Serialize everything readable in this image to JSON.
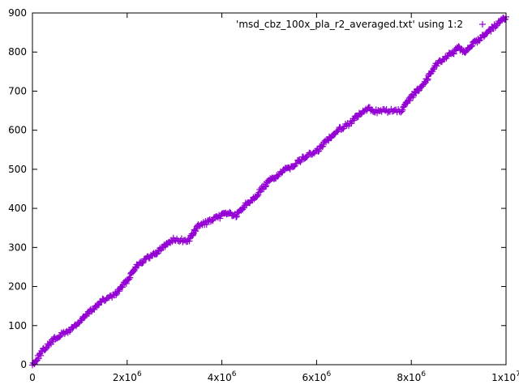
{
  "chart_data": {
    "type": "scatter",
    "title": "",
    "xlabel": "",
    "ylabel": "",
    "xlim": [
      0,
      10000000
    ],
    "ylim": [
      0,
      900
    ],
    "grid": false,
    "legend_placement": "top-right",
    "x_ticks": [
      {
        "value": 0,
        "base": "0",
        "exp": ""
      },
      {
        "value": 2000000,
        "base": "2x10",
        "exp": "6"
      },
      {
        "value": 4000000,
        "base": "4x10",
        "exp": "6"
      },
      {
        "value": 6000000,
        "base": "6x10",
        "exp": "6"
      },
      {
        "value": 8000000,
        "base": "8x10",
        "exp": "6"
      },
      {
        "value": 10000000,
        "base": "1x10",
        "exp": "7"
      }
    ],
    "y_ticks": [
      0,
      100,
      200,
      300,
      400,
      500,
      600,
      700,
      800,
      900
    ],
    "series": [
      {
        "name": "'msd_cbz_100x_pla_r2_averaged.txt' using 1:2",
        "color": "#9400d3",
        "marker": "+",
        "x": [
          0,
          250000,
          500000,
          750000,
          1000000,
          1250000,
          1500000,
          1750000,
          2000000,
          2200000,
          2400000,
          2600000,
          2800000,
          2950000,
          3100000,
          3300000,
          3500000,
          3700000,
          3900000,
          4100000,
          4300000,
          4500000,
          4700000,
          5000000,
          5300000,
          5500000,
          5800000,
          6000000,
          6300000,
          6500000,
          6700000,
          6900000,
          7100000,
          7300000,
          7500000,
          7700000,
          7800000,
          8000000,
          8300000,
          8500000,
          8700000,
          8900000,
          9000000,
          9100000,
          9300000,
          9500000,
          9700000,
          9900000,
          10000000
        ],
        "y": [
          0,
          40,
          70,
          85,
          110,
          140,
          165,
          180,
          215,
          255,
          270,
          285,
          305,
          320,
          318,
          318,
          355,
          365,
          375,
          390,
          380,
          410,
          430,
          470,
          495,
          510,
          535,
          545,
          585,
          605,
          618,
          640,
          655,
          648,
          650,
          648,
          650,
          685,
          725,
          765,
          785,
          800,
          810,
          800,
          820,
          840,
          860,
          880,
          890
        ]
      }
    ]
  }
}
